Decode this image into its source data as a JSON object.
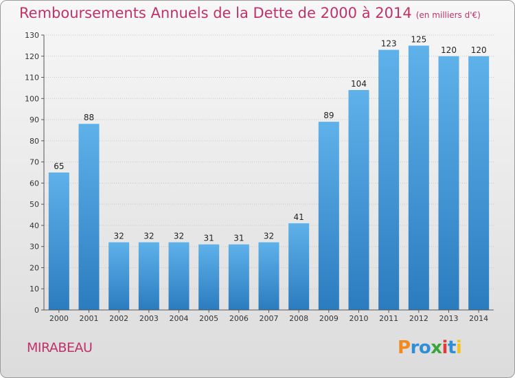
{
  "title": "Remboursements Annuels de la Dette de 2000 à 2014",
  "unit": "(en milliers d'€)",
  "commune": "MIRABEAU",
  "logo": {
    "text": "Proxiti",
    "letters": [
      "P",
      "r",
      "o",
      "x",
      "i",
      "t",
      "i"
    ],
    "colors": [
      "#f28a1f",
      "#2e8fd6",
      "#2e8fd6",
      "#3aa53a",
      "#e03a3a",
      "#2e8fd6",
      "#f2c21f"
    ]
  },
  "colors": {
    "accent": "#c0316a",
    "bar_top": "#5fb1ea",
    "bar_bottom": "#2a7cbf"
  },
  "chart_data": {
    "type": "bar",
    "title": "Remboursements Annuels de la Dette de 2000 à 2014",
    "xlabel": "",
    "ylabel": "",
    "categories": [
      "2000",
      "2001",
      "2002",
      "2003",
      "2004",
      "2005",
      "2006",
      "2007",
      "2008",
      "2009",
      "2010",
      "2011",
      "2012",
      "2013",
      "2014"
    ],
    "values": [
      65,
      88,
      32,
      32,
      32,
      31,
      31,
      32,
      41,
      89,
      104,
      123,
      125,
      120,
      120
    ],
    "ylim": [
      0,
      130
    ],
    "yticks": [
      0,
      10,
      20,
      30,
      40,
      50,
      60,
      70,
      80,
      90,
      100,
      110,
      120,
      130
    ],
    "grid": true
  }
}
